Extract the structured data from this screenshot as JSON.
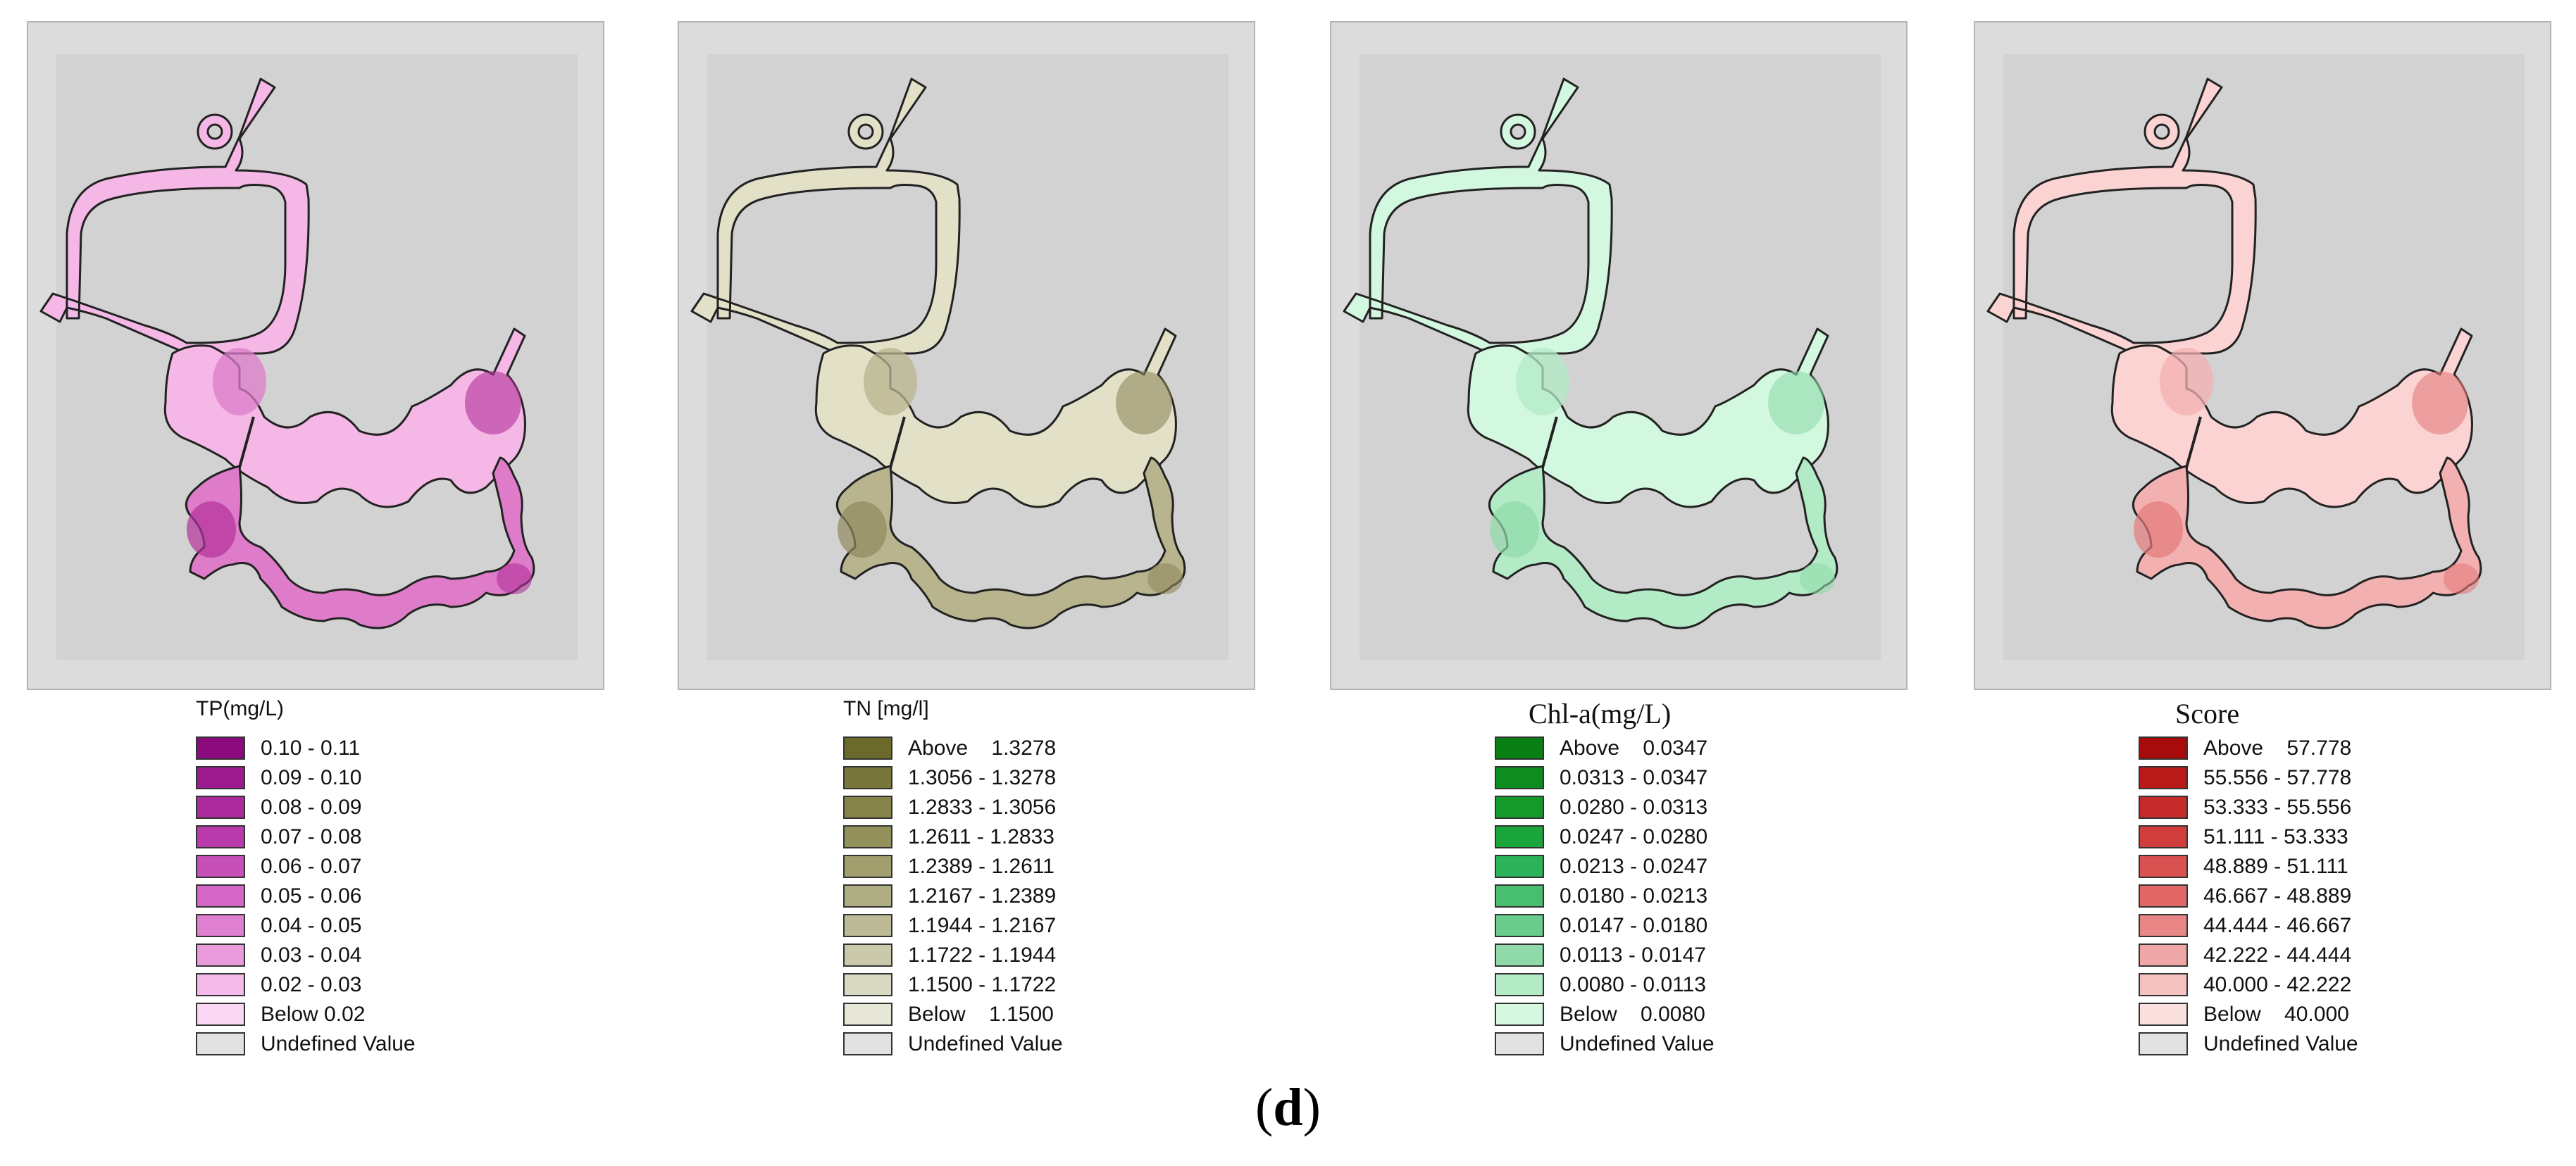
{
  "panels": [
    {
      "id": "tp",
      "title": "TP(mg/L)",
      "title_font": "sans",
      "fill_light": "#f4b7e6",
      "fill_mid": "#de7cc9",
      "fill_dark": "#b3309a",
      "legend": [
        {
          "color": "#8b0a7e",
          "label": "0.10 - 0.11"
        },
        {
          "color": "#9c1b8e",
          "label": "0.09 - 0.10"
        },
        {
          "color": "#ab2b9d",
          "label": "0.08 - 0.09"
        },
        {
          "color": "#b93aab",
          "label": "0.07 - 0.08"
        },
        {
          "color": "#c74fb8",
          "label": "0.06 - 0.07"
        },
        {
          "color": "#d466c5",
          "label": "0.05 - 0.06"
        },
        {
          "color": "#df7fd0",
          "label": "0.04 - 0.05"
        },
        {
          "color": "#ea9bdc",
          "label": "0.03 - 0.04"
        },
        {
          "color": "#f3b9e8",
          "label": "0.02 - 0.03"
        },
        {
          "color": "#fbd7f4",
          "label": "Below 0.02"
        },
        {
          "color": "#e2e2e2",
          "label": "Undefined Value"
        }
      ]
    },
    {
      "id": "tn",
      "title": "TN [mg/l]",
      "title_font": "sans",
      "fill_light": "#e2e0c7",
      "fill_mid": "#b8b48e",
      "fill_dark": "#8e895c",
      "legend": [
        {
          "color": "#6b6a2c",
          "label": "Above    1.3278"
        },
        {
          "color": "#78763b",
          "label": "1.3056 - 1.3278"
        },
        {
          "color": "#86844b",
          "label": "1.2833 - 1.3056"
        },
        {
          "color": "#93915c",
          "label": "1.2611 - 1.2833"
        },
        {
          "color": "#a19f6e",
          "label": "1.2389 - 1.2611"
        },
        {
          "color": "#afad82",
          "label": "1.2167 - 1.2389"
        },
        {
          "color": "#bdbb97",
          "label": "1.1944 - 1.2167"
        },
        {
          "color": "#cbc9ac",
          "label": "1.1722 - 1.1944"
        },
        {
          "color": "#d9d8c2",
          "label": "1.1500 - 1.1722"
        },
        {
          "color": "#e7e7d8",
          "label": "Below    1.1500"
        },
        {
          "color": "#e2e2e2",
          "label": "Undefined Value"
        }
      ]
    },
    {
      "id": "chla",
      "title": "Chl-a(mg/L)",
      "title_font": "serif",
      "fill_light": "#d3f8e0",
      "fill_mid": "#b2ebc6",
      "fill_dark": "#8fdaa8",
      "legend": [
        {
          "color": "#0a7f14",
          "label": "Above    0.0347"
        },
        {
          "color": "#0e8c1f",
          "label": "0.0313 - 0.0347"
        },
        {
          "color": "#149a2b",
          "label": "0.0280 - 0.0313"
        },
        {
          "color": "#1aa63a",
          "label": "0.0247 - 0.0280"
        },
        {
          "color": "#2cb258",
          "label": "0.0213 - 0.0247"
        },
        {
          "color": "#48bf6e",
          "label": "0.0180 - 0.0213"
        },
        {
          "color": "#6bcd8c",
          "label": "0.0147 - 0.0180"
        },
        {
          "color": "#8fdaa8",
          "label": "0.0113 - 0.0147"
        },
        {
          "color": "#b2ebc6",
          "label": "0.0080 - 0.0113"
        },
        {
          "color": "#d6f8e1",
          "label": "Below    0.0080"
        },
        {
          "color": "#e2e2e2",
          "label": "Undefined Value"
        }
      ]
    },
    {
      "id": "score",
      "title": "Score",
      "title_font": "serif",
      "fill_light": "#fbd3d3",
      "fill_mid": "#f3b0b0",
      "fill_dark": "#e47b7b",
      "legend": [
        {
          "color": "#a80b0b",
          "label": "Above    57.778"
        },
        {
          "color": "#b81a1a",
          "label": "55.556 - 57.778"
        },
        {
          "color": "#c62b2b",
          "label": "53.333 - 55.556"
        },
        {
          "color": "#d13d3d",
          "label": "51.111 - 53.333"
        },
        {
          "color": "#d95151",
          "label": "48.889 - 51.111"
        },
        {
          "color": "#e16767",
          "label": "46.667 - 48.889"
        },
        {
          "color": "#e88686",
          "label": "44.444 - 46.667"
        },
        {
          "color": "#efa6a6",
          "label": "42.222 - 44.444"
        },
        {
          "color": "#f5c2c2",
          "label": "40.000 - 42.222"
        },
        {
          "color": "#fbe0e0",
          "label": "Below    40.000"
        },
        {
          "color": "#e2e2e2",
          "label": "Undefined Value"
        }
      ]
    }
  ],
  "caption": {
    "open": "(",
    "letter": "d",
    "close": ")"
  }
}
